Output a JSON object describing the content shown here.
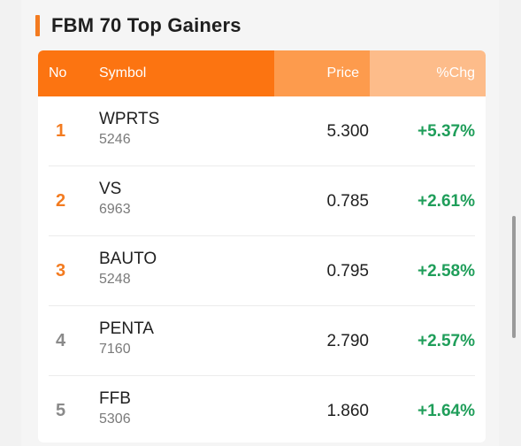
{
  "widget": {
    "title": "FBM 70 Top Gainers",
    "accent_color": "#f37b20"
  },
  "table": {
    "headers": {
      "no": "No",
      "symbol": "Symbol",
      "price": "Price",
      "change": "%Chg"
    },
    "rows": [
      {
        "rank": "1",
        "symbol": "WPRTS",
        "code": "5246",
        "price": "5.300",
        "change": "+5.37%"
      },
      {
        "rank": "2",
        "symbol": "VS",
        "code": "6963",
        "price": "0.785",
        "change": "+2.61%"
      },
      {
        "rank": "3",
        "symbol": "BAUTO",
        "code": "5248",
        "price": "0.795",
        "change": "+2.58%"
      },
      {
        "rank": "4",
        "symbol": "PENTA",
        "code": "7160",
        "price": "2.790",
        "change": "+2.57%"
      },
      {
        "rank": "5",
        "symbol": "FFB",
        "code": "5306",
        "price": "1.860",
        "change": "+1.64%"
      }
    ]
  },
  "colors": {
    "header_primary": "#fc7411",
    "header_price": "#fd9b4d",
    "header_change": "#fdbc8a",
    "gain": "#1f9e5a",
    "rank_top": "#f37b20",
    "rank_other": "#8a8a8a"
  }
}
